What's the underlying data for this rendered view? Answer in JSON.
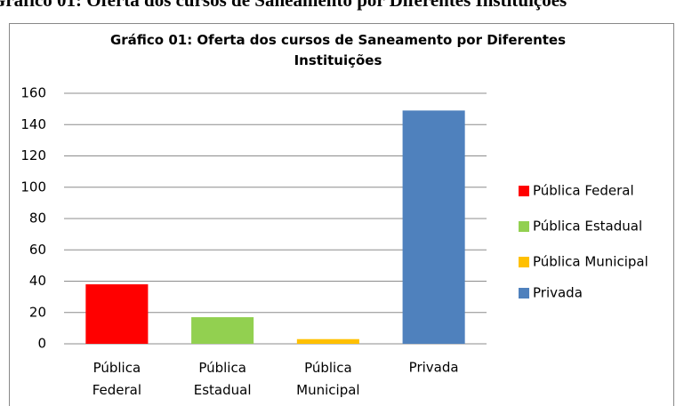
{
  "caption": "Gráfico 01: Oferta dos cursos de Saneamento por Diferentes Instituições",
  "chart_data": {
    "type": "bar",
    "title": "Gráfico 01: Oferta dos cursos de Saneamento por Diferentes Instituições",
    "categories": [
      "Pública Federal",
      "Pública Estadual",
      "Pública Municipal",
      "Privada"
    ],
    "values": [
      38,
      17,
      3,
      149
    ],
    "colors": [
      "#ff0000",
      "#92d050",
      "#ffc000",
      "#4f81bd"
    ],
    "ylim": [
      0,
      160
    ],
    "yticks": [
      0,
      20,
      40,
      60,
      80,
      100,
      120,
      140,
      160
    ],
    "grid": true,
    "legend": "right"
  }
}
